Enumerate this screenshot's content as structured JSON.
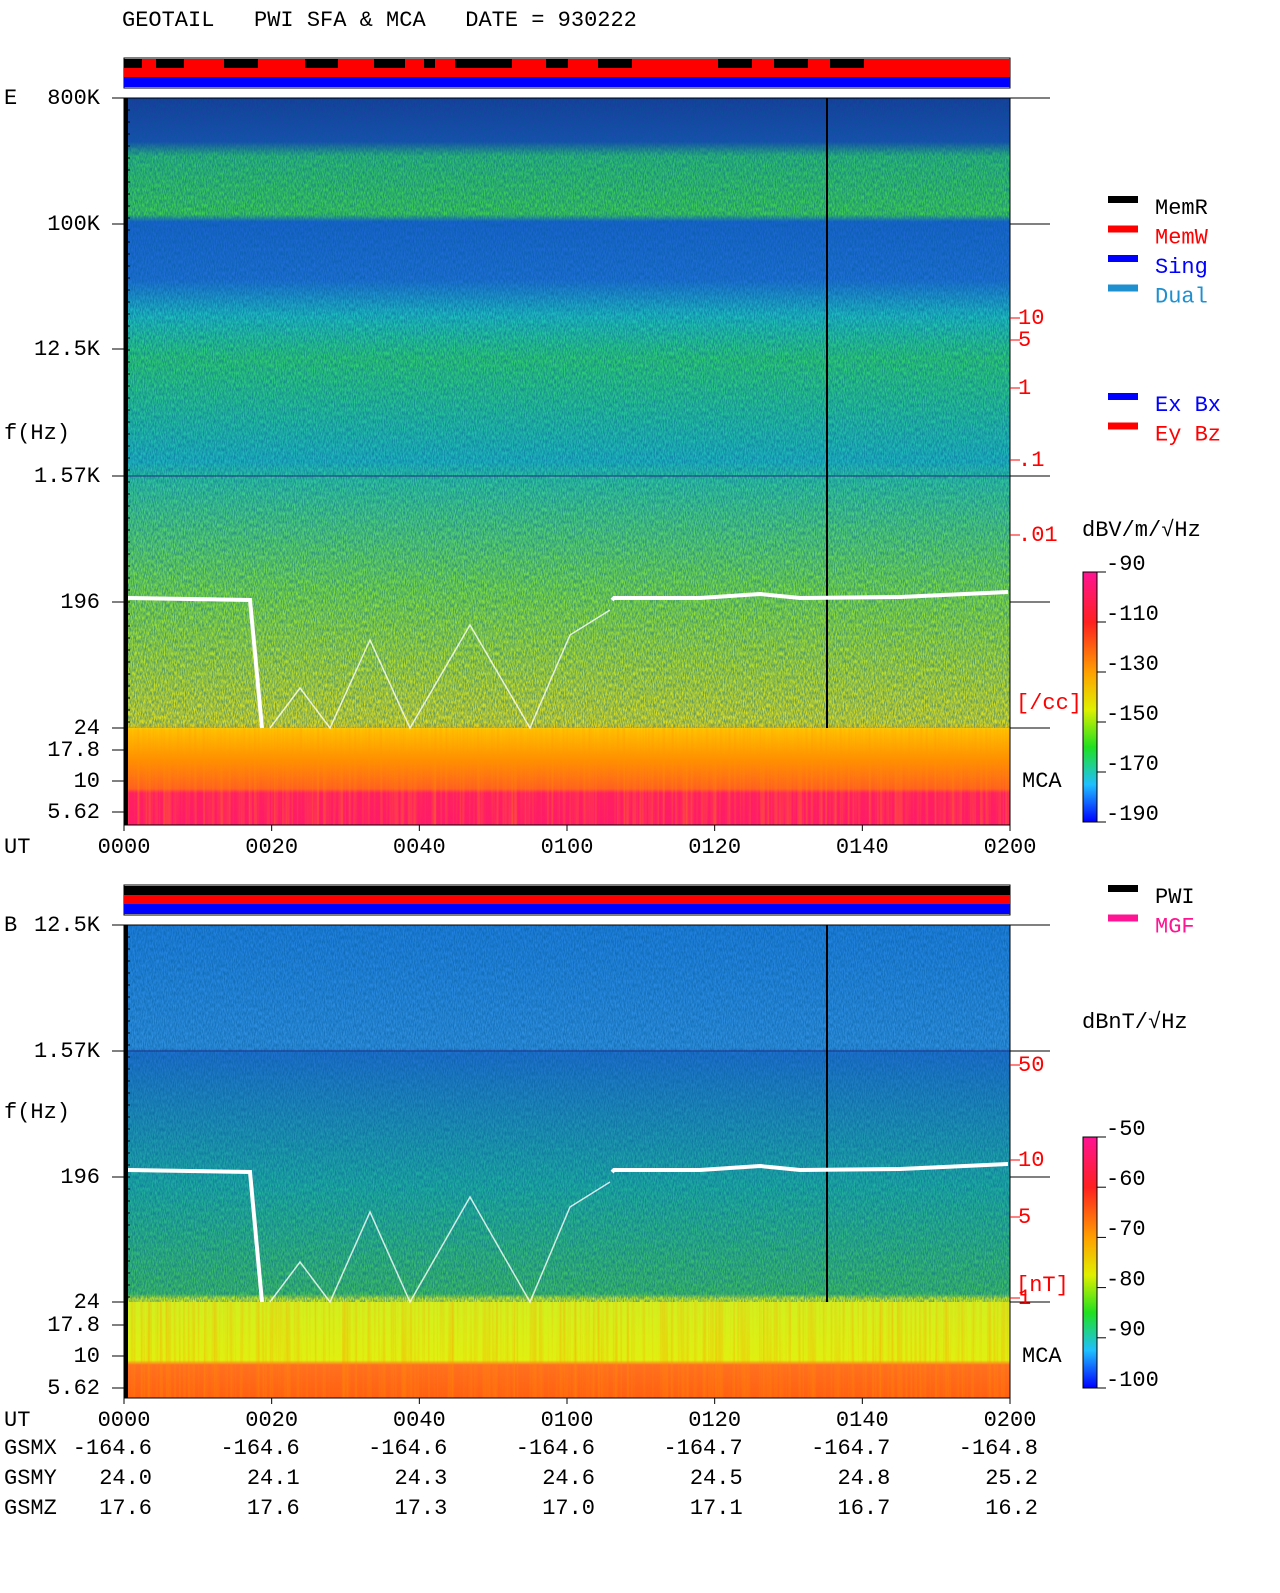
{
  "title": "GEOTAIL   PWI SFA & MCA   DATE = 930222",
  "panels": [
    {
      "label": "E",
      "ylabel": "f(Hz)",
      "freq_labels": [
        "800K",
        "100K",
        "12.5K",
        "1.57K",
        "196",
        "24",
        "17.8",
        "10",
        "5.62"
      ],
      "right_labels": [
        "10",
        "5",
        "1",
        ".1",
        ".01",
        "[/cc]"
      ],
      "mca": "MCA",
      "ut_label": "UT",
      "times": [
        "0000",
        "0020",
        "0040",
        "0100",
        "0120",
        "0140",
        "0200"
      ],
      "colorbar": {
        "unit": "dBV/m/√Hz",
        "ticks": [
          -90,
          -110,
          -130,
          -150,
          -170,
          -190
        ],
        "lim": [
          -90,
          -190
        ]
      }
    },
    {
      "label": "B",
      "ylabel": "f(Hz)",
      "freq_labels": [
        "12.5K",
        "1.57K",
        "196",
        "24",
        "17.8",
        "10",
        "5.62"
      ],
      "right_labels": [
        "50",
        "10",
        "5",
        "1",
        "[nT]"
      ],
      "mca": "MCA",
      "ut_label": "UT",
      "times": [
        "0000",
        "0020",
        "0040",
        "0100",
        "0120",
        "0140",
        "0200"
      ],
      "colorbar": {
        "unit": "dBnT/√Hz",
        "ticks": [
          -50,
          -60,
          -70,
          -80,
          -90,
          -100
        ],
        "lim": [
          -50,
          -100
        ]
      }
    }
  ],
  "legend": {
    "modes": [
      {
        "name": "MemR",
        "color": "#000000"
      },
      {
        "name": "MemW",
        "color": "#ff0000"
      },
      {
        "name": "Sing",
        "color": "#0000ff"
      },
      {
        "name": "Dual",
        "color": "#1e90d0"
      }
    ],
    "components": [
      {
        "name": "Ex Bx",
        "color": "#0000ff"
      },
      {
        "name": "Ey Bz",
        "color": "#ff0000"
      }
    ],
    "sources": [
      {
        "name": "PWI",
        "color": "#000000"
      },
      {
        "name": "MGF",
        "color": "#ff1493"
      }
    ]
  },
  "orbit": {
    "rows": [
      {
        "name": "GSMX",
        "values": [
          "-164.6",
          "-164.6",
          "-164.6",
          "-164.6",
          "-164.7",
          "-164.7",
          "-164.8"
        ]
      },
      {
        "name": "GSMY",
        "values": [
          "24.0",
          "24.1",
          "24.3",
          "24.6",
          "24.5",
          "24.8",
          "25.2"
        ]
      },
      {
        "name": "GSMZ",
        "values": [
          "17.6",
          "17.6",
          "17.3",
          "17.0",
          "17.1",
          "16.7",
          "16.2"
        ]
      }
    ]
  }
}
